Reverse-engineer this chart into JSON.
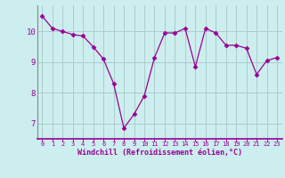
{
  "x": [
    0,
    1,
    2,
    3,
    4,
    5,
    6,
    7,
    8,
    9,
    10,
    11,
    12,
    13,
    14,
    15,
    16,
    17,
    18,
    19,
    20,
    21,
    22,
    23
  ],
  "y": [
    10.5,
    10.1,
    10.0,
    9.9,
    9.85,
    9.5,
    9.1,
    8.3,
    6.85,
    7.3,
    7.9,
    9.15,
    9.95,
    9.95,
    10.1,
    8.85,
    10.1,
    9.95,
    9.55,
    9.55,
    9.45,
    8.6,
    9.05,
    9.15
  ],
  "line_color": "#990099",
  "marker": "D",
  "marker_size": 2.5,
  "bg_color": "#cceeee",
  "grid_color": "#aacccc",
  "xlabel": "Windchill (Refroidissement éolien,°C)",
  "xlabel_color": "#990099",
  "tick_color": "#990099",
  "spine_color": "#888888",
  "ylim": [
    6.5,
    10.85
  ],
  "yticks": [
    7,
    8,
    9,
    10
  ],
  "xlim": [
    -0.5,
    23.5
  ],
  "xticks": [
    0,
    1,
    2,
    3,
    4,
    5,
    6,
    7,
    8,
    9,
    10,
    11,
    12,
    13,
    14,
    15,
    16,
    17,
    18,
    19,
    20,
    21,
    22,
    23
  ],
  "xlabel_fontsize": 6.0,
  "xtick_fontsize": 5.0,
  "ytick_fontsize": 6.5
}
